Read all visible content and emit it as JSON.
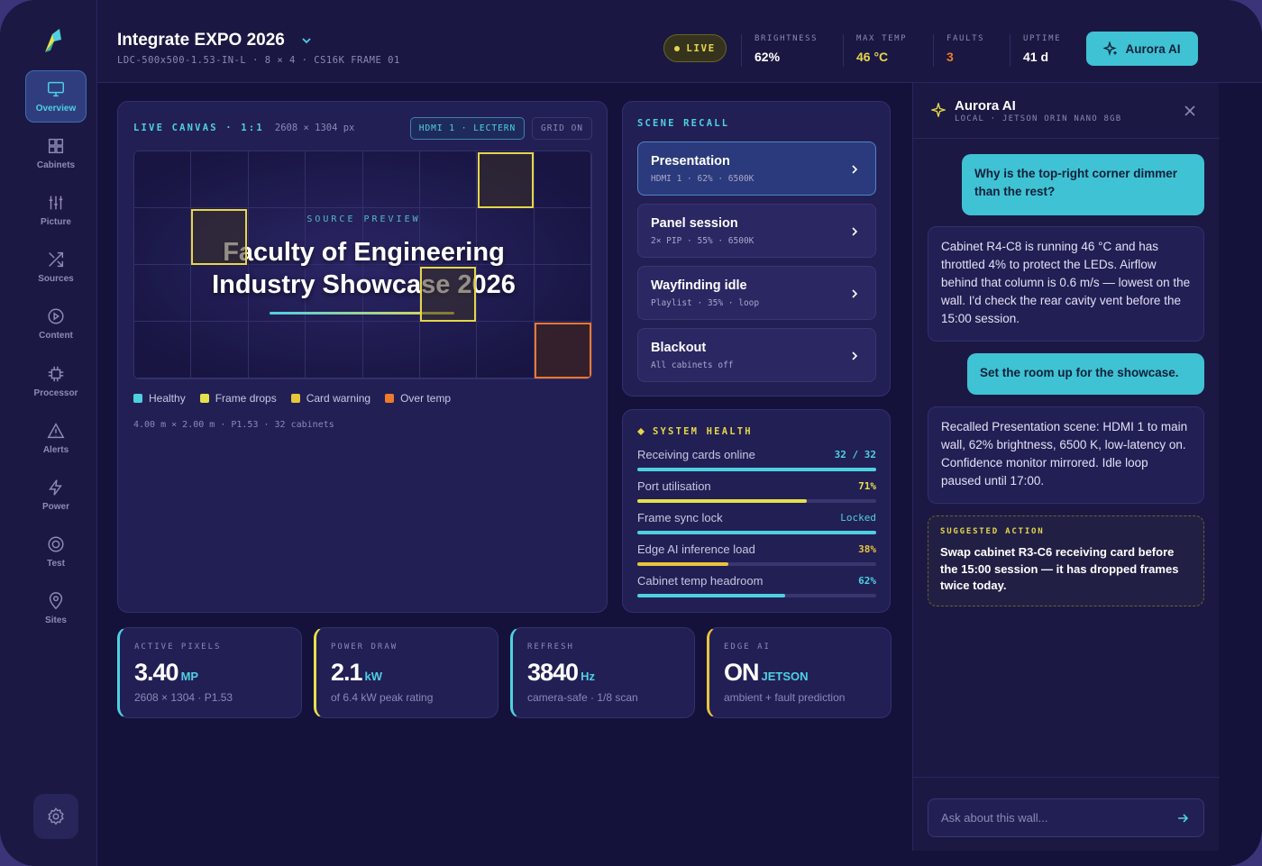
{
  "nav": {
    "items": [
      {
        "label": "Overview",
        "icon": "monitor-icon",
        "active": true
      },
      {
        "label": "Cabinets",
        "icon": "grid-icon"
      },
      {
        "label": "Picture",
        "icon": "sliders-icon"
      },
      {
        "label": "Sources",
        "icon": "shuffle-icon"
      },
      {
        "label": "Content",
        "icon": "play-circle-icon"
      },
      {
        "label": "Processor",
        "icon": "chip-icon"
      },
      {
        "label": "Alerts",
        "icon": "warning-icon"
      },
      {
        "label": "Power",
        "icon": "bolt-icon"
      },
      {
        "label": "Test",
        "icon": "target-icon"
      },
      {
        "label": "Sites",
        "icon": "pin-icon"
      }
    ]
  },
  "header": {
    "title": "Integrate EXPO 2026",
    "subtitle": "LDC-500x500-1.53-IN-L · 8 × 4 · CS16K FRAME 01",
    "live": "LIVE",
    "stats": [
      {
        "label": "BRIGHTNESS",
        "value": "62%",
        "color": "#ffffff"
      },
      {
        "label": "MAX TEMP",
        "value": "46 °C",
        "color": "#e5d64a"
      },
      {
        "label": "FAULTS",
        "value": "3",
        "color": "#ef7a2c"
      },
      {
        "label": "UPTIME",
        "value": "41 d",
        "color": "#ffffff"
      }
    ],
    "ai_button": "Aurora AI"
  },
  "canvas": {
    "label": "LIVE CANVAS · 1:1",
    "dims": "2608 × 1304 px",
    "source_chip": "HDMI 1 · LECTERN",
    "grid_chip": "GRID ON",
    "preview_label": "SOURCE PREVIEW",
    "preview_title_1": "Faculty of Engineering",
    "preview_title_2": "Industry Showcase 2026",
    "legend": [
      {
        "label": "Healthy",
        "color": "#4fd0e0"
      },
      {
        "label": "Frame drops",
        "color": "#e5e14a"
      },
      {
        "label": "Card warning",
        "color": "#e8c53a"
      },
      {
        "label": "Over temp",
        "color": "#ef7a2c"
      }
    ],
    "footer": "4.00 m × 2.00 m · P1.53 · 32 cabinets"
  },
  "scenes": {
    "label": "SCENE RECALL",
    "items": [
      {
        "name": "Presentation",
        "desc": "HDMI 1 · 62% · 6500K",
        "active": true
      },
      {
        "name": "Panel session",
        "desc": "2× PIP · 55% · 6500K"
      },
      {
        "name": "Wayfinding idle",
        "desc": "Playlist · 35% · loop"
      },
      {
        "name": "Blackout",
        "desc": "All cabinets off"
      }
    ]
  },
  "health": {
    "label": "SYSTEM HEALTH",
    "rows": [
      {
        "label": "Receiving cards online",
        "value": "32 / 32",
        "fraction": 1.0,
        "color": "#4fd0e0"
      },
      {
        "label": "Port utilisation",
        "value": "71%",
        "fraction": 0.71,
        "color": "#e5e14a"
      },
      {
        "label": "Frame sync lock",
        "value": "Locked",
        "fraction": 1.0,
        "color": "#4fd0e0"
      },
      {
        "label": "Edge AI inference load",
        "value": "38%",
        "fraction": 0.38,
        "color": "#e8c53a"
      },
      {
        "label": "Cabinet temp headroom",
        "value": "62%",
        "fraction": 0.62,
        "color": "#4fd0e0"
      }
    ]
  },
  "metrics": [
    {
      "label": "ACTIVE PIXELS",
      "value": "3.40",
      "unit": "MP",
      "sub": "2608 × 1304 · P1.53",
      "color": "#4fd0e0"
    },
    {
      "label": "POWER DRAW",
      "value": "2.1",
      "unit": "kW",
      "sub": "of 6.4 kW peak rating",
      "color": "#e5e14a"
    },
    {
      "label": "REFRESH",
      "value": "3840",
      "unit": "Hz",
      "sub": "camera-safe · 1/8 scan",
      "color": "#4fd0e0"
    },
    {
      "label": "EDGE AI",
      "value": "ON",
      "unit": "JETSON",
      "sub": "ambient + fault prediction",
      "color": "#e8c53a"
    }
  ],
  "ai": {
    "name": "Aurora AI",
    "sub": "LOCAL · JETSON ORIN NANO 8GB",
    "messages": [
      {
        "role": "user",
        "text": "Why is the top-right corner dimmer than the rest?"
      },
      {
        "role": "bot",
        "text": "Cabinet R4-C8 is running 46 °C and has throttled 4% to protect the LEDs. Airflow behind that column is 0.6 m/s — lowest on the wall. I'd check the rear cavity vent before the 15:00 session."
      },
      {
        "role": "user",
        "text": "Set the room up for the showcase."
      },
      {
        "role": "bot",
        "text": "Recalled Presentation scene: HDMI 1 to main wall, 62% brightness, 6500 K, low-latency on. Confidence monitor mirrored. Idle loop paused until 17:00."
      }
    ],
    "suggest_label": "SUGGESTED ACTION",
    "suggest_text": "Swap cabinet R3-C6 receiving card before the 15:00 session — it has dropped frames twice today.",
    "input_placeholder": "Ask about this wall..."
  }
}
